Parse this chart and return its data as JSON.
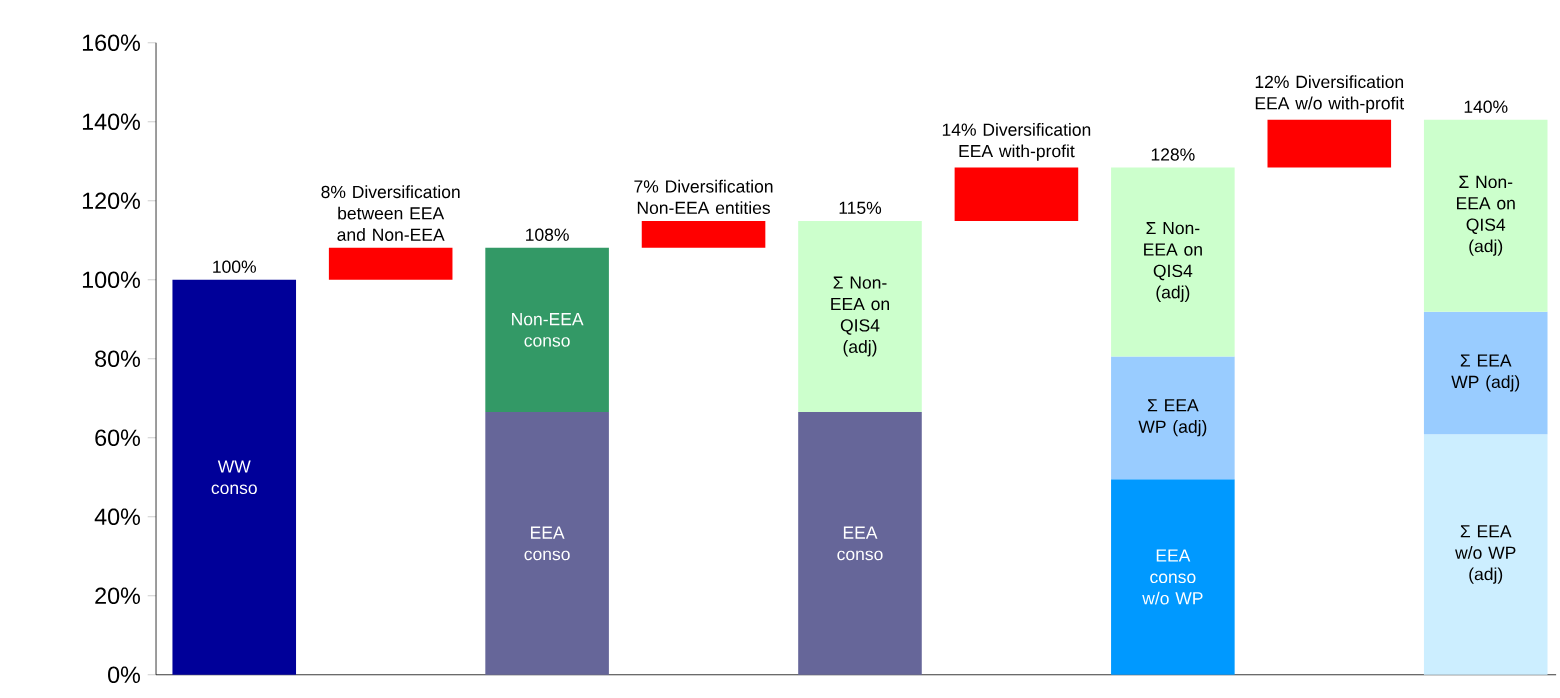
{
  "chart_data": {
    "type": "bar",
    "stacked": true,
    "categories": [
      null,
      null,
      null,
      null,
      null,
      null,
      null,
      null,
      null
    ],
    "ylim": [
      0,
      160
    ],
    "yticks": [
      {
        "value": 0,
        "label": "0%"
      },
      {
        "value": 20,
        "label": "20%"
      },
      {
        "value": 40,
        "label": "40%"
      },
      {
        "value": 60,
        "label": "60%"
      },
      {
        "value": 80,
        "label": "80%"
      },
      {
        "value": 100,
        "label": "100%"
      },
      {
        "value": 120,
        "label": "120%"
      },
      {
        "value": 140,
        "label": "140%"
      },
      {
        "value": 160,
        "label": "160%"
      }
    ],
    "series": [
      {
        "name": "WW conso",
        "color": "#000099",
        "values": [
          100,
          null,
          null,
          null,
          null,
          null,
          null,
          null,
          null
        ]
      },
      {
        "name": "EEA conso",
        "color": "#666699",
        "values": [
          null,
          null,
          66.5,
          null,
          66.5,
          null,
          null,
          null,
          null
        ]
      },
      {
        "name": "EEA conso w/o WP",
        "color": "#0099ff",
        "values": [
          null,
          null,
          null,
          null,
          null,
          null,
          49.5,
          null,
          null
        ]
      },
      {
        "name": "Σ EEA w/o WP (adj)",
        "color": "#cceeff",
        "values": [
          null,
          null,
          null,
          null,
          null,
          null,
          null,
          null,
          60.9
        ]
      },
      {
        "name": "Σ EEA WP (adj)",
        "color": "#99ccff",
        "values": [
          null,
          null,
          null,
          null,
          null,
          null,
          31.1,
          null,
          31.0
        ]
      },
      {
        "name": "Non-EEA conso",
        "color": "#339966",
        "values": [
          null,
          null,
          41.6,
          null,
          null,
          null,
          null,
          null,
          null
        ]
      },
      {
        "name": "Σ Non-EEA on QIS4 (adj)",
        "color": "#ccffcc",
        "values": [
          null,
          null,
          null,
          null,
          48.4,
          null,
          47.8,
          null,
          48.6
        ]
      },
      {
        "color": "#ff0000",
        "base": [
          null,
          100,
          null,
          108.1,
          null,
          114.9,
          null,
          128.4,
          null
        ],
        "values": [
          null,
          8.1,
          null,
          6.8,
          null,
          13.5,
          null,
          12.1,
          null
        ],
        "value_labels": [
          null,
          "8% Diversification between EEA and Non-EEA",
          null,
          "7% Diversification Non-EEA entities",
          null,
          "14% Diversification EEA with-profit",
          null,
          "12% Diversification EEA w/o with-profit",
          null
        ]
      }
    ],
    "totals": [
      "100%",
      null,
      "108%",
      null,
      "115%",
      null,
      "128%",
      null,
      "140%"
    ]
  }
}
